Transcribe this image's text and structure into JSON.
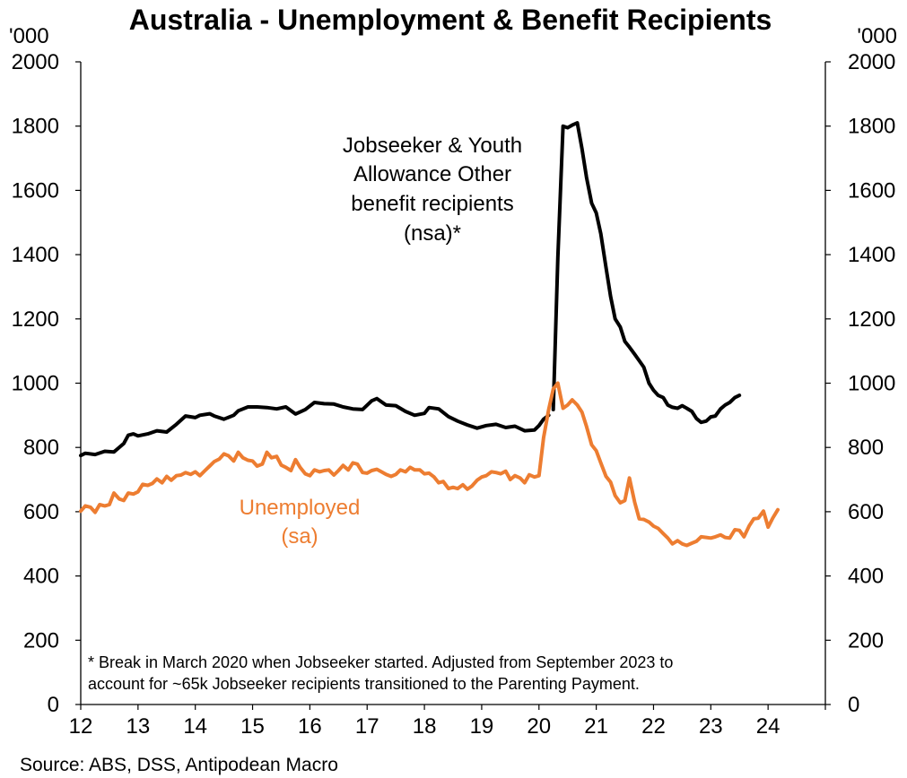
{
  "chart_data": {
    "type": "line",
    "title": "Australia - Unemployment & Benefit Recipients",
    "y_left_unit": "'000",
    "y_right_unit": "'000",
    "ylim": [
      0,
      2000
    ],
    "yticks": [
      "0",
      "200",
      "400",
      "600",
      "800",
      "1000",
      "1200",
      "1400",
      "1600",
      "1800",
      "2000"
    ],
    "xlim": [
      12,
      25
    ],
    "xticks": [
      "12",
      "13",
      "14",
      "15",
      "16",
      "17",
      "18",
      "19",
      "20",
      "21",
      "22",
      "23",
      "24"
    ],
    "colors": {
      "black": "#000000",
      "orange": "#ED7D31",
      "axis": "#000000"
    },
    "series": [
      {
        "name": "Jobseeker & Youth Allowance Other benefit recipients (nsa)*",
        "color": "#000000",
        "segments": [
          [
            [
              12.0,
              775
            ],
            [
              12.08,
              782
            ],
            [
              12.25,
              778
            ],
            [
              12.42,
              788
            ],
            [
              12.58,
              786
            ],
            [
              12.75,
              812
            ],
            [
              12.83,
              838
            ],
            [
              12.92,
              842
            ],
            [
              13.0,
              836
            ],
            [
              13.17,
              842
            ],
            [
              13.33,
              852
            ],
            [
              13.5,
              848
            ],
            [
              13.67,
              872
            ],
            [
              13.83,
              898
            ],
            [
              14.0,
              893
            ],
            [
              14.08,
              900
            ],
            [
              14.25,
              905
            ],
            [
              14.33,
              898
            ],
            [
              14.5,
              888
            ],
            [
              14.67,
              900
            ],
            [
              14.75,
              914
            ],
            [
              14.92,
              926
            ],
            [
              15.08,
              926
            ],
            [
              15.25,
              924
            ],
            [
              15.42,
              920
            ],
            [
              15.58,
              926
            ],
            [
              15.75,
              904
            ],
            [
              15.92,
              918
            ],
            [
              16.08,
              940
            ],
            [
              16.25,
              936
            ],
            [
              16.42,
              935
            ],
            [
              16.58,
              926
            ],
            [
              16.75,
              920
            ],
            [
              16.92,
              918
            ],
            [
              17.08,
              945
            ],
            [
              17.17,
              952
            ],
            [
              17.33,
              932
            ],
            [
              17.5,
              930
            ],
            [
              17.67,
              912
            ],
            [
              17.83,
              900
            ],
            [
              18.0,
              906
            ],
            [
              18.08,
              924
            ],
            [
              18.25,
              920
            ],
            [
              18.42,
              896
            ],
            [
              18.58,
              882
            ],
            [
              18.75,
              870
            ],
            [
              18.92,
              860
            ],
            [
              19.08,
              868
            ],
            [
              19.25,
              872
            ],
            [
              19.42,
              862
            ],
            [
              19.58,
              866
            ],
            [
              19.75,
              852
            ],
            [
              19.92,
              854
            ],
            [
              20.0,
              868
            ],
            [
              20.08,
              888
            ],
            [
              20.17,
              900
            ]
          ],
          [
            [
              20.25,
              918
            ],
            [
              20.33,
              1390
            ],
            [
              20.42,
              1800
            ],
            [
              20.5,
              1795
            ],
            [
              20.58,
              1803
            ],
            [
              20.67,
              1810
            ],
            [
              20.75,
              1730
            ],
            [
              20.83,
              1640
            ],
            [
              20.92,
              1560
            ],
            [
              21.0,
              1530
            ],
            [
              21.08,
              1465
            ],
            [
              21.17,
              1360
            ],
            [
              21.25,
              1270
            ],
            [
              21.33,
              1200
            ],
            [
              21.42,
              1175
            ],
            [
              21.5,
              1130
            ],
            [
              21.58,
              1112
            ],
            [
              21.67,
              1090
            ],
            [
              21.75,
              1070
            ],
            [
              21.83,
              1050
            ],
            [
              21.92,
              1000
            ],
            [
              22.0,
              978
            ],
            [
              22.08,
              962
            ],
            [
              22.17,
              955
            ],
            [
              22.25,
              932
            ],
            [
              22.33,
              925
            ],
            [
              22.42,
              922
            ],
            [
              22.5,
              930
            ],
            [
              22.58,
              922
            ],
            [
              22.67,
              912
            ],
            [
              22.75,
              890
            ],
            [
              22.83,
              878
            ],
            [
              22.92,
              882
            ],
            [
              23.0,
              895
            ],
            [
              23.08,
              898
            ],
            [
              23.17,
              920
            ],
            [
              23.25,
              932
            ],
            [
              23.33,
              940
            ],
            [
              23.42,
              955
            ],
            [
              23.5,
              962
            ]
          ]
        ]
      },
      {
        "name": "Unemployed (sa)",
        "color": "#ED7D31",
        "segments": [
          [
            [
              12.0,
              602
            ],
            [
              12.08,
              618
            ],
            [
              12.17,
              614
            ],
            [
              12.25,
              598
            ],
            [
              12.33,
              622
            ],
            [
              12.42,
              618
            ],
            [
              12.5,
              622
            ],
            [
              12.58,
              658
            ],
            [
              12.67,
              640
            ],
            [
              12.75,
              635
            ],
            [
              12.83,
              658
            ],
            [
              12.92,
              655
            ],
            [
              13.0,
              662
            ],
            [
              13.08,
              685
            ],
            [
              13.17,
              682
            ],
            [
              13.25,
              688
            ],
            [
              13.33,
              702
            ],
            [
              13.42,
              690
            ],
            [
              13.5,
              710
            ],
            [
              13.58,
              698
            ],
            [
              13.67,
              712
            ],
            [
              13.75,
              714
            ],
            [
              13.83,
              722
            ],
            [
              13.92,
              716
            ],
            [
              14.0,
              724
            ],
            [
              14.08,
              712
            ],
            [
              14.17,
              728
            ],
            [
              14.25,
              742
            ],
            [
              14.33,
              756
            ],
            [
              14.42,
              764
            ],
            [
              14.5,
              780
            ],
            [
              14.58,
              774
            ],
            [
              14.67,
              758
            ],
            [
              14.75,
              785
            ],
            [
              14.83,
              768
            ],
            [
              14.92,
              760
            ],
            [
              15.0,
              758
            ],
            [
              15.08,
              742
            ],
            [
              15.17,
              748
            ],
            [
              15.25,
              785
            ],
            [
              15.33,
              768
            ],
            [
              15.42,
              772
            ],
            [
              15.5,
              745
            ],
            [
              15.58,
              738
            ],
            [
              15.67,
              728
            ],
            [
              15.75,
              762
            ],
            [
              15.83,
              738
            ],
            [
              15.92,
              718
            ],
            [
              16.0,
              712
            ],
            [
              16.08,
              730
            ],
            [
              16.17,
              724
            ],
            [
              16.25,
              728
            ],
            [
              16.33,
              730
            ],
            [
              16.42,
              714
            ],
            [
              16.5,
              728
            ],
            [
              16.58,
              744
            ],
            [
              16.67,
              730
            ],
            [
              16.75,
              752
            ],
            [
              16.83,
              748
            ],
            [
              16.92,
              722
            ],
            [
              17.0,
              720
            ],
            [
              17.08,
              728
            ],
            [
              17.17,
              732
            ],
            [
              17.25,
              724
            ],
            [
              17.33,
              716
            ],
            [
              17.42,
              710
            ],
            [
              17.5,
              716
            ],
            [
              17.58,
              730
            ],
            [
              17.67,
              724
            ],
            [
              17.75,
              738
            ],
            [
              17.83,
              730
            ],
            [
              17.92,
              730
            ],
            [
              18.0,
              718
            ],
            [
              18.08,
              720
            ],
            [
              18.17,
              708
            ],
            [
              18.25,
              690
            ],
            [
              18.33,
              694
            ],
            [
              18.42,
              672
            ],
            [
              18.5,
              676
            ],
            [
              18.58,
              672
            ],
            [
              18.67,
              684
            ],
            [
              18.75,
              670
            ],
            [
              18.83,
              680
            ],
            [
              18.92,
              698
            ],
            [
              19.0,
              708
            ],
            [
              19.08,
              712
            ],
            [
              19.17,
              724
            ],
            [
              19.25,
              722
            ],
            [
              19.33,
              718
            ],
            [
              19.42,
              726
            ],
            [
              19.5,
              700
            ],
            [
              19.58,
              712
            ],
            [
              19.67,
              705
            ],
            [
              19.75,
              690
            ],
            [
              19.83,
              715
            ],
            [
              19.92,
              708
            ],
            [
              20.0,
              712
            ],
            [
              20.08,
              830
            ],
            [
              20.17,
              918
            ],
            [
              20.25,
              982
            ],
            [
              20.33,
              1000
            ],
            [
              20.42,
              922
            ],
            [
              20.5,
              932
            ],
            [
              20.58,
              948
            ],
            [
              20.67,
              932
            ],
            [
              20.75,
              910
            ],
            [
              20.83,
              865
            ],
            [
              20.92,
              808
            ],
            [
              21.0,
              790
            ],
            [
              21.08,
              752
            ],
            [
              21.17,
              710
            ],
            [
              21.25,
              692
            ],
            [
              21.33,
              650
            ],
            [
              21.42,
              628
            ],
            [
              21.5,
              635
            ],
            [
              21.58,
              705
            ],
            [
              21.67,
              630
            ],
            [
              21.75,
              578
            ],
            [
              21.83,
              576
            ],
            [
              21.92,
              568
            ],
            [
              22.0,
              555
            ],
            [
              22.08,
              548
            ],
            [
              22.17,
              532
            ],
            [
              22.25,
              518
            ],
            [
              22.33,
              500
            ],
            [
              22.42,
              510
            ],
            [
              22.5,
              500
            ],
            [
              22.58,
              495
            ],
            [
              22.67,
              502
            ],
            [
              22.75,
              508
            ],
            [
              22.83,
              522
            ],
            [
              22.92,
              520
            ],
            [
              23.0,
              518
            ],
            [
              23.08,
              522
            ],
            [
              23.17,
              528
            ],
            [
              23.25,
              520
            ],
            [
              23.33,
              518
            ],
            [
              23.42,
              544
            ],
            [
              23.5,
              542
            ],
            [
              23.58,
              522
            ],
            [
              23.67,
              556
            ],
            [
              23.75,
              578
            ],
            [
              23.83,
              580
            ],
            [
              23.92,
              602
            ],
            [
              24.0,
              552
            ],
            [
              24.08,
              580
            ],
            [
              24.17,
              606
            ]
          ]
        ]
      }
    ],
    "annotations": {
      "jobseeker_lines": [
        "Jobseeker & Youth",
        "Allowance Other",
        "benefit recipients",
        "(nsa)*"
      ],
      "unemployed_lines": [
        "Unemployed",
        "(sa)"
      ],
      "footnote_lines": [
        "* Break in March 2020 when Jobseeker started. Adjusted from September 2023 to",
        "account for ~65k Jobseeker recipients transitioned to the Parenting Payment."
      ]
    },
    "source": "Source: ABS, DSS, Antipodean Macro"
  }
}
